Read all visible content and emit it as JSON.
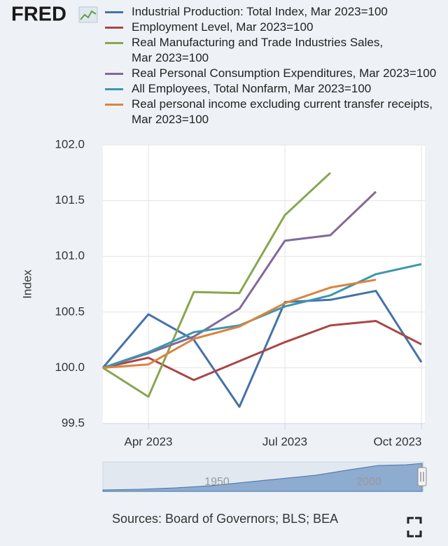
{
  "logo": "FRED",
  "chart_data": {
    "type": "line",
    "y_label": "Index",
    "x": [
      "2023-03",
      "2023-04",
      "2023-05",
      "2023-06",
      "2023-07",
      "2023-08",
      "2023-09",
      "2023-10"
    ],
    "xlim": [
      "2023-03",
      "2023-10"
    ],
    "xticks": [
      {
        "value": "2023-04",
        "label": "Apr 2023"
      },
      {
        "value": "2023-07",
        "label": "Jul 2023"
      },
      {
        "value": "2023-10",
        "label": "Oct 2023"
      }
    ],
    "ylim": [
      99.5,
      102.0
    ],
    "yticks": [
      {
        "value": 99.5,
        "label": "99.5"
      },
      {
        "value": 100,
        "label": "100.0"
      },
      {
        "value": 100.5,
        "label": "100.5"
      },
      {
        "value": 101,
        "label": "101.0"
      },
      {
        "value": 101.5,
        "label": "101.5"
      },
      {
        "value": 102,
        "label": "102.0"
      }
    ],
    "grid": true,
    "series": [
      {
        "name": "Industrial Production: Total Index, Mar 2023=100",
        "color": "#4572a7",
        "values": [
          100,
          100.48,
          100.25,
          99.65,
          100.59,
          100.61,
          100.69,
          100.05
        ]
      },
      {
        "name": "Employment Level, Mar 2023=100",
        "color": "#aa4643",
        "values": [
          100,
          100.09,
          99.89,
          100.06,
          100.23,
          100.38,
          100.42,
          100.21
        ]
      },
      {
        "name": "Real Manufacturing and Trade Industries Sales,\nMar 2023=100",
        "color": "#89a54e",
        "values": [
          100,
          99.74,
          100.68,
          100.67,
          101.37,
          101.75,
          null,
          null
        ]
      },
      {
        "name": "Real Personal Consumption Expenditures, Mar 2023=100",
        "color": "#80699b",
        "values": [
          100,
          100.13,
          100.28,
          100.53,
          101.14,
          101.19,
          101.58,
          null
        ]
      },
      {
        "name": "All Employees, Total Nonfarm, Mar 2023=100",
        "color": "#3d96ae",
        "values": [
          100,
          100.14,
          100.32,
          100.38,
          100.55,
          100.65,
          100.84,
          100.93
        ]
      },
      {
        "name": "Real personal income excluding current transfer receipts,\nMar 2023=100",
        "color": "#db843d",
        "values": [
          100,
          100.03,
          100.26,
          100.37,
          100.58,
          100.72,
          100.79,
          null
        ]
      }
    ],
    "navigator_labels": [
      "1950",
      "2000"
    ],
    "source": "Sources: Board of Governors; BLS; BEA"
  }
}
